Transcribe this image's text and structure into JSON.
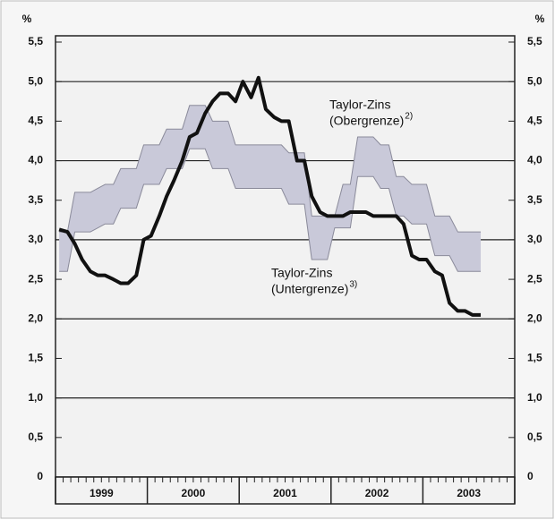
{
  "chart_data": {
    "type": "line",
    "y_label": "%",
    "ylim": [
      0,
      5.5
    ],
    "yticks": [
      0,
      {
        "value": 0.5,
        "label": "0,5"
      },
      {
        "value": 1,
        "label": "1,0"
      },
      {
        "value": 1.5,
        "label": "1,5"
      },
      {
        "value": 2,
        "label": "2,0"
      },
      {
        "value": 2.5,
        "label": "2,5"
      },
      {
        "value": 3,
        "label": "3,0"
      },
      {
        "value": 3.5,
        "label": "3,5"
      },
      {
        "value": 4,
        "label": "4,0"
      },
      {
        "value": 4.5,
        "label": "4,5"
      },
      {
        "value": 5,
        "label": "5,0"
      },
      {
        "value": 5.5,
        "label": "5,5"
      }
    ],
    "grid": true,
    "xlim": [
      1999,
      2004
    ],
    "categories": [
      "1999",
      "2000",
      "2001",
      "2002",
      "2003"
    ],
    "x_separators": [
      1999,
      2000,
      2001,
      2002,
      2003,
      2004
    ],
    "x": [
      1999.04,
      1999.13,
      1999.21,
      1999.29,
      1999.38,
      1999.46,
      1999.54,
      1999.63,
      1999.71,
      1999.79,
      1999.88,
      1999.96,
      2000.04,
      2000.13,
      2000.21,
      2000.29,
      2000.38,
      2000.46,
      2000.54,
      2000.63,
      2000.71,
      2000.79,
      2000.88,
      2000.96,
      2001.04,
      2001.13,
      2001.21,
      2001.29,
      2001.38,
      2001.46,
      2001.54,
      2001.63,
      2001.71,
      2001.79,
      2001.88,
      2001.96,
      2002.04,
      2002.13,
      2002.21,
      2002.29,
      2002.38,
      2002.46,
      2002.54,
      2002.63,
      2002.71,
      2002.79,
      2002.88,
      2002.96,
      2003.04,
      2003.13,
      2003.21,
      2003.29,
      2003.38,
      2003.46,
      2003.54,
      2003.63
    ],
    "band_color": "#c9c9d9",
    "series": [
      {
        "color": "#8a8a9a",
        "values": [
          3.1,
          3.1,
          3.6,
          3.6,
          3.6,
          3.65,
          3.7,
          3.7,
          3.9,
          3.9,
          3.9,
          4.2,
          4.2,
          4.2,
          4.4,
          4.4,
          4.4,
          4.7,
          4.7,
          4.7,
          4.5,
          4.5,
          4.5,
          4.2,
          4.2,
          4.2,
          4.2,
          4.2,
          4.2,
          4.2,
          4.1,
          4.1,
          4.1,
          3.3,
          3.3,
          3.3,
          3.3,
          3.7,
          3.7,
          4.3,
          4.3,
          4.3,
          4.2,
          4.2,
          3.8,
          3.8,
          3.7,
          3.7,
          3.7,
          3.3,
          3.3,
          3.3,
          3.1,
          3.1,
          3.1,
          3.1
        ]
      },
      {
        "color": "#8a8a9a",
        "values": [
          2.6,
          2.6,
          3.1,
          3.1,
          3.1,
          3.15,
          3.2,
          3.2,
          3.4,
          3.4,
          3.4,
          3.7,
          3.7,
          3.7,
          3.9,
          3.9,
          3.9,
          4.15,
          4.15,
          4.15,
          3.9,
          3.9,
          3.9,
          3.65,
          3.65,
          3.65,
          3.65,
          3.65,
          3.65,
          3.65,
          3.45,
          3.45,
          3.45,
          2.75,
          2.75,
          2.75,
          3.15,
          3.15,
          3.15,
          3.8,
          3.8,
          3.8,
          3.65,
          3.65,
          3.3,
          3.3,
          3.2,
          3.2,
          3.2,
          2.8,
          2.8,
          2.8,
          2.6,
          2.6,
          2.6,
          2.6
        ]
      },
      {
        "color": "#111111",
        "values": [
          3.13,
          3.1,
          2.95,
          2.75,
          2.6,
          2.55,
          2.55,
          2.5,
          2.45,
          2.45,
          2.55,
          3.0,
          3.05,
          3.3,
          3.55,
          3.75,
          4.0,
          4.3,
          4.35,
          4.6,
          4.75,
          4.85,
          4.85,
          4.75,
          5.0,
          4.8,
          5.05,
          4.65,
          4.55,
          4.5,
          4.5,
          4.0,
          4.0,
          3.55,
          3.35,
          3.3,
          3.3,
          3.3,
          3.35,
          3.35,
          3.35,
          3.3,
          3.3,
          3.3,
          3.3,
          3.2,
          2.8,
          2.75,
          2.75,
          2.6,
          2.55,
          2.2,
          2.1,
          2.1,
          2.05,
          2.05
        ]
      }
    ],
    "annotations": [
      {
        "lines": [
          "Taylor-Zins",
          "(Obergrenze)"
        ],
        "sup": "2)"
      },
      {
        "lines": [
          "Taylor-Zins",
          "(Untergrenze)"
        ],
        "sup": "3)"
      }
    ]
  }
}
